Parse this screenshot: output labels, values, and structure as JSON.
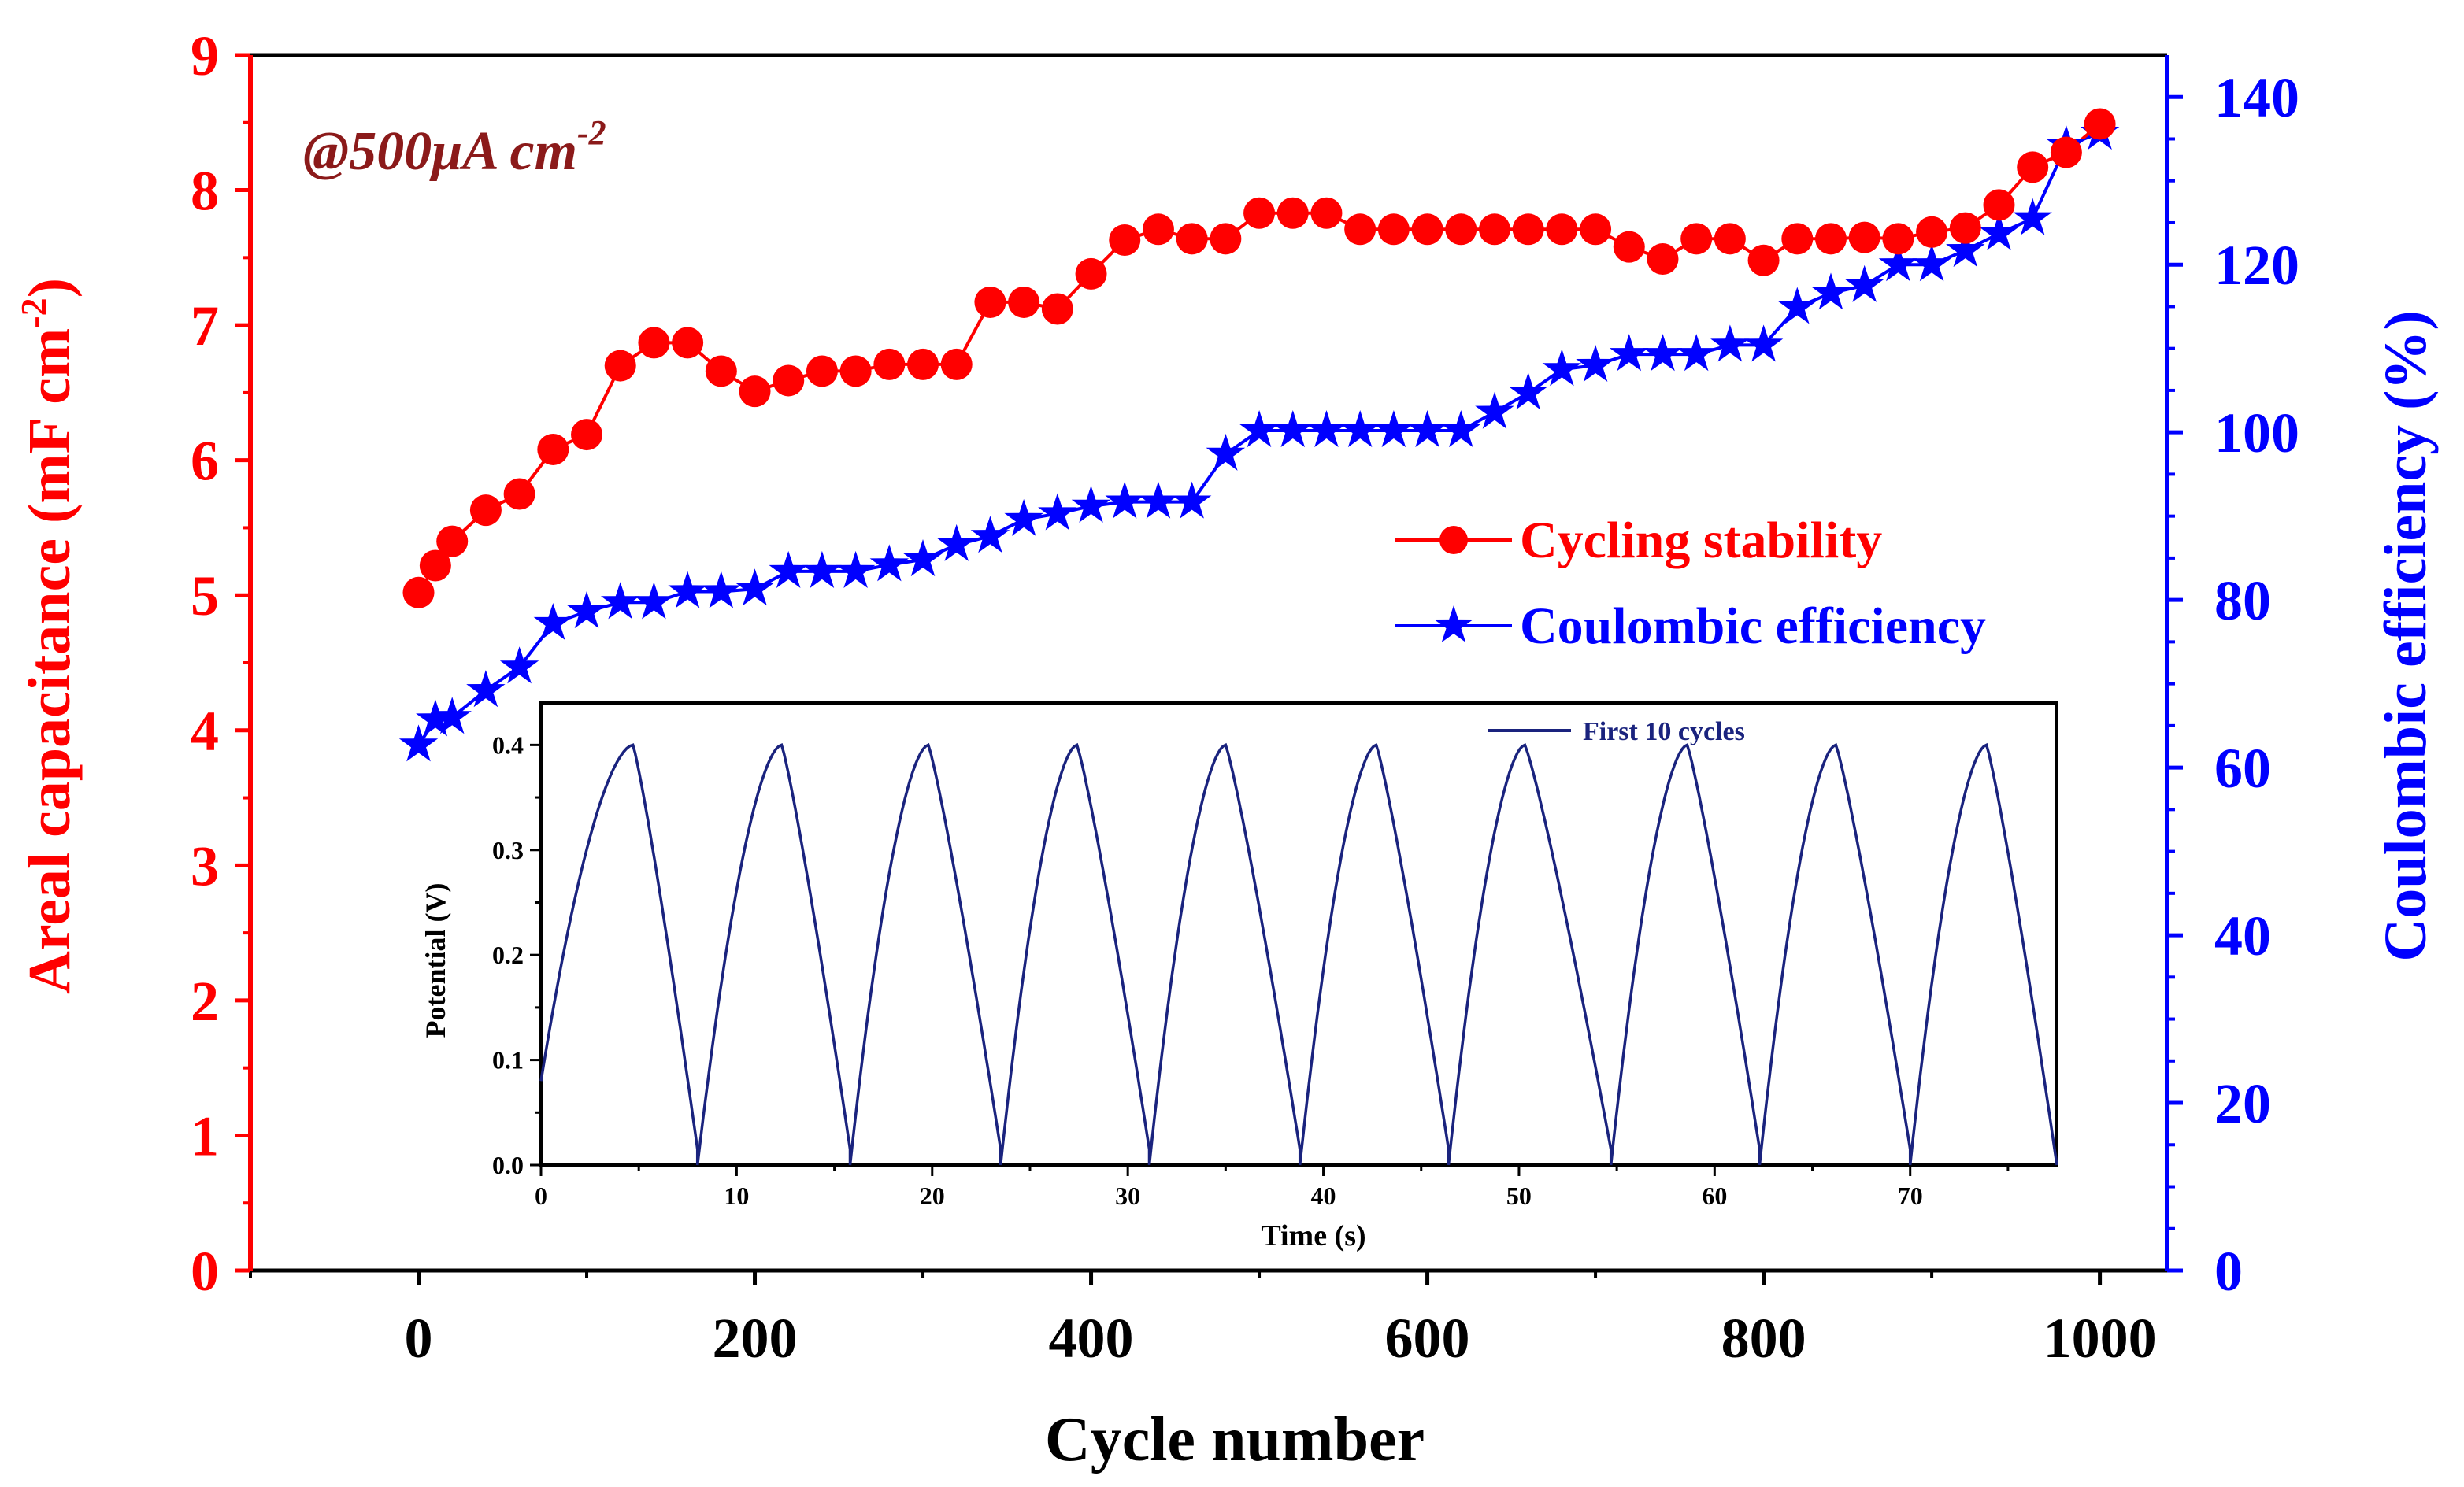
{
  "chart_data": [
    {
      "type": "line",
      "annotation": "@500μA cm",
      "annotation_sup": "-2",
      "x": {
        "label": "Cycle number",
        "range": [
          -100,
          1040
        ],
        "ticks": [
          0,
          200,
          400,
          600,
          800,
          1000
        ],
        "tick_labels": [
          "0",
          "200",
          "400",
          "600",
          "800",
          "1000"
        ]
      },
      "y_left": {
        "label": "Areal capacitance (mF cm",
        "label_sup": "-2",
        "label_end": ")",
        "range": [
          0,
          9
        ],
        "ticks": [
          0,
          1,
          2,
          3,
          4,
          5,
          6,
          7,
          8,
          9
        ],
        "tick_labels": [
          "0",
          "1",
          "2",
          "3",
          "4",
          "5",
          "6",
          "7",
          "8",
          "9"
        ],
        "color": "#ff0000"
      },
      "y_right": {
        "label": "Coulombic efficiency (%)",
        "range": [
          0,
          145
        ],
        "ticks": [
          0,
          20,
          40,
          60,
          80,
          100,
          120,
          140
        ],
        "tick_labels": [
          "0",
          "20",
          "40",
          "60",
          "80",
          "100",
          "120",
          "140"
        ],
        "color": "#0000ff"
      },
      "legend": {
        "position": "center-right",
        "entries": [
          {
            "name": "Cycling stability",
            "color": "#ff0000",
            "marker": "circle"
          },
          {
            "name": "Coulombic efficiency",
            "color": "#0000ff",
            "marker": "star"
          }
        ]
      },
      "series": [
        {
          "name": "Cycling stability",
          "axis": "left",
          "color": "#ff0000",
          "x": [
            0,
            10,
            20,
            40,
            60,
            80,
            100,
            120,
            140,
            160,
            180,
            200,
            220,
            240,
            260,
            280,
            300,
            320,
            340,
            360,
            380,
            400,
            420,
            440,
            460,
            480,
            500,
            520,
            540,
            560,
            580,
            600,
            620,
            640,
            660,
            680,
            700,
            720,
            740,
            760,
            780,
            800,
            820,
            840,
            860,
            880,
            900,
            920,
            940,
            960,
            980,
            1000
          ],
          "values": [
            5.02,
            5.22,
            5.4,
            5.63,
            5.75,
            6.08,
            6.19,
            6.7,
            6.87,
            6.87,
            6.66,
            6.51,
            6.59,
            6.66,
            6.66,
            6.71,
            6.71,
            6.71,
            7.17,
            7.17,
            7.12,
            7.38,
            7.63,
            7.71,
            7.64,
            7.64,
            7.83,
            7.83,
            7.83,
            7.71,
            7.71,
            7.71,
            7.71,
            7.71,
            7.71,
            7.71,
            7.71,
            7.58,
            7.49,
            7.64,
            7.64,
            7.48,
            7.64,
            7.64,
            7.65,
            7.64,
            7.69,
            7.72,
            7.89,
            8.17,
            8.28,
            8.49
          ]
        },
        {
          "name": "Coulombic efficiency",
          "axis": "right",
          "color": "#0000ff",
          "x": [
            0,
            10,
            20,
            40,
            60,
            80,
            100,
            120,
            140,
            160,
            180,
            200,
            220,
            240,
            260,
            280,
            300,
            320,
            340,
            360,
            380,
            400,
            420,
            440,
            460,
            480,
            500,
            520,
            540,
            560,
            580,
            600,
            620,
            640,
            660,
            680,
            700,
            720,
            740,
            760,
            780,
            800,
            820,
            840,
            860,
            880,
            900,
            920,
            940,
            960,
            980,
            1000
          ],
          "values": [
            62.7,
            65.7,
            66.0,
            69.2,
            72.0,
            77.2,
            78.6,
            79.7,
            79.7,
            81.0,
            81.0,
            81.3,
            83.4,
            83.4,
            83.4,
            84.2,
            84.8,
            86.6,
            87.6,
            89.6,
            90.3,
            91.2,
            91.7,
            91.7,
            91.7,
            97.4,
            100.2,
            100.2,
            100.2,
            100.2,
            100.2,
            100.2,
            100.2,
            102.4,
            104.7,
            107.5,
            108.0,
            109.3,
            109.3,
            109.3,
            110.4,
            110.4,
            114.9,
            116.6,
            117.5,
            120.0,
            120.0,
            121.7,
            123.7,
            125.5,
            134.2,
            135.7
          ]
        }
      ]
    },
    {
      "type": "line",
      "inset": true,
      "x": {
        "label": "Time (s)",
        "range": [
          0,
          77.5
        ],
        "ticks": [
          0,
          10,
          20,
          30,
          40,
          50,
          60,
          70
        ],
        "tick_labels": [
          "0",
          "10",
          "20",
          "30",
          "40",
          "50",
          "60",
          "70"
        ]
      },
      "y": {
        "label": "Potential (V)",
        "range": [
          0,
          0.44
        ],
        "ticks": [
          0.0,
          0.1,
          0.2,
          0.3,
          0.4
        ],
        "tick_labels": [
          "0.0",
          "0.1",
          "0.2",
          "0.3",
          "0.4"
        ]
      },
      "legend": {
        "position": "top-right",
        "entries": [
          {
            "name": "First 10 cycles",
            "color": "#1a237e"
          }
        ]
      },
      "series": [
        {
          "name": "First 10 cycles",
          "color": "#1a237e",
          "cycles": [
            {
              "start": 0.0,
              "peak": 4.7,
              "end": 8.0
            },
            {
              "start": 8.0,
              "peak": 12.3,
              "end": 15.8
            },
            {
              "start": 15.8,
              "peak": 19.8,
              "end": 23.5
            },
            {
              "start": 23.5,
              "peak": 27.4,
              "end": 31.1
            },
            {
              "start": 31.1,
              "peak": 35.0,
              "end": 38.8
            },
            {
              "start": 38.8,
              "peak": 42.7,
              "end": 46.4
            },
            {
              "start": 46.4,
              "peak": 50.3,
              "end": 54.7
            },
            {
              "start": 54.7,
              "peak": 58.6,
              "end": 62.3
            },
            {
              "start": 62.3,
              "peak": 66.2,
              "end": 70.0
            },
            {
              "start": 70.0,
              "peak": 73.9,
              "end": 77.5
            }
          ],
          "v_max": 0.4,
          "v_min_first": 0.08,
          "v_min": 0.0
        }
      ]
    }
  ]
}
